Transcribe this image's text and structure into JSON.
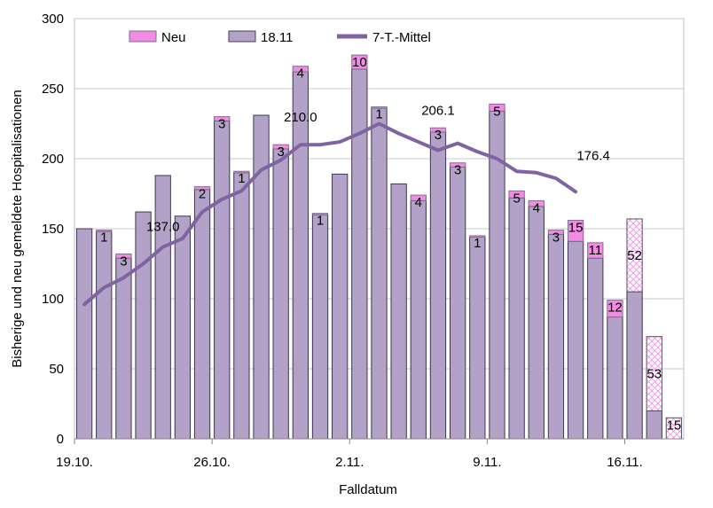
{
  "chart_data": {
    "type": "bar",
    "title": "",
    "xlabel": "Falldatum",
    "ylabel": "Bisherige und neu gemeldete Hospitalisationen",
    "ylim": [
      0,
      300
    ],
    "yticks": [
      0,
      50,
      100,
      150,
      200,
      250,
      300
    ],
    "x_tick_labels": [
      "19.10.",
      "26.10.",
      "2.11.",
      "9.11.",
      "16.11."
    ],
    "categories": [
      "19.10.",
      "20.10.",
      "21.10.",
      "22.10.",
      "23.10.",
      "24.10.",
      "25.10.",
      "26.10.",
      "27.10.",
      "28.10.",
      "29.10.",
      "30.10.",
      "31.10.",
      "1.11.",
      "2.11.",
      "3.11.",
      "4.11.",
      "5.11.",
      "6.11.",
      "7.11.",
      "8.11.",
      "9.11.",
      "10.11.",
      "11.11.",
      "12.11.",
      "13.11.",
      "14.11.",
      "15.11.",
      "16.11.",
      "17.11.",
      "18.11."
    ],
    "series": [
      {
        "name": "18.11",
        "type": "bar",
        "color": "#B3A2C7",
        "values": [
          150,
          148,
          129,
          162,
          188,
          159,
          178,
          227,
          190,
          231,
          207,
          262,
          160,
          189,
          264,
          236,
          182,
          170,
          219,
          194,
          144,
          234,
          172,
          166,
          146,
          141,
          129,
          87,
          105,
          20,
          0
        ]
      },
      {
        "name": "Neu",
        "type": "bar",
        "color": "#F28CE3",
        "values": [
          0,
          1,
          3,
          0,
          0,
          0,
          2,
          3,
          1,
          0,
          3,
          4,
          1,
          0,
          10,
          1,
          0,
          4,
          3,
          3,
          1,
          5,
          5,
          4,
          3,
          15,
          11,
          12,
          52,
          53,
          15
        ]
      },
      {
        "name": "7-T.-Mittel",
        "type": "line",
        "color": "#8064A2",
        "values": [
          96,
          108,
          115,
          125,
          137,
          143,
          162,
          171,
          177,
          192,
          199,
          210,
          210,
          212,
          218,
          225,
          218,
          212,
          206,
          211,
          205,
          200,
          191,
          190,
          186,
          176.4,
          null,
          null,
          null,
          null,
          null
        ]
      }
    ],
    "hatched_from_index": 28,
    "annotations": [
      {
        "text": "137.0",
        "x_index": 4,
        "y": 137
      },
      {
        "text": "210.0",
        "x_index": 11,
        "y": 210
      },
      {
        "text": "206.1",
        "x_index": 18,
        "y": 206.1
      },
      {
        "text": "176.4",
        "x_index": 25,
        "y": 176.4
      }
    ],
    "legend": {
      "position": "top",
      "entries": [
        "Neu",
        "18.11",
        "7-T.-Mittel"
      ]
    }
  }
}
